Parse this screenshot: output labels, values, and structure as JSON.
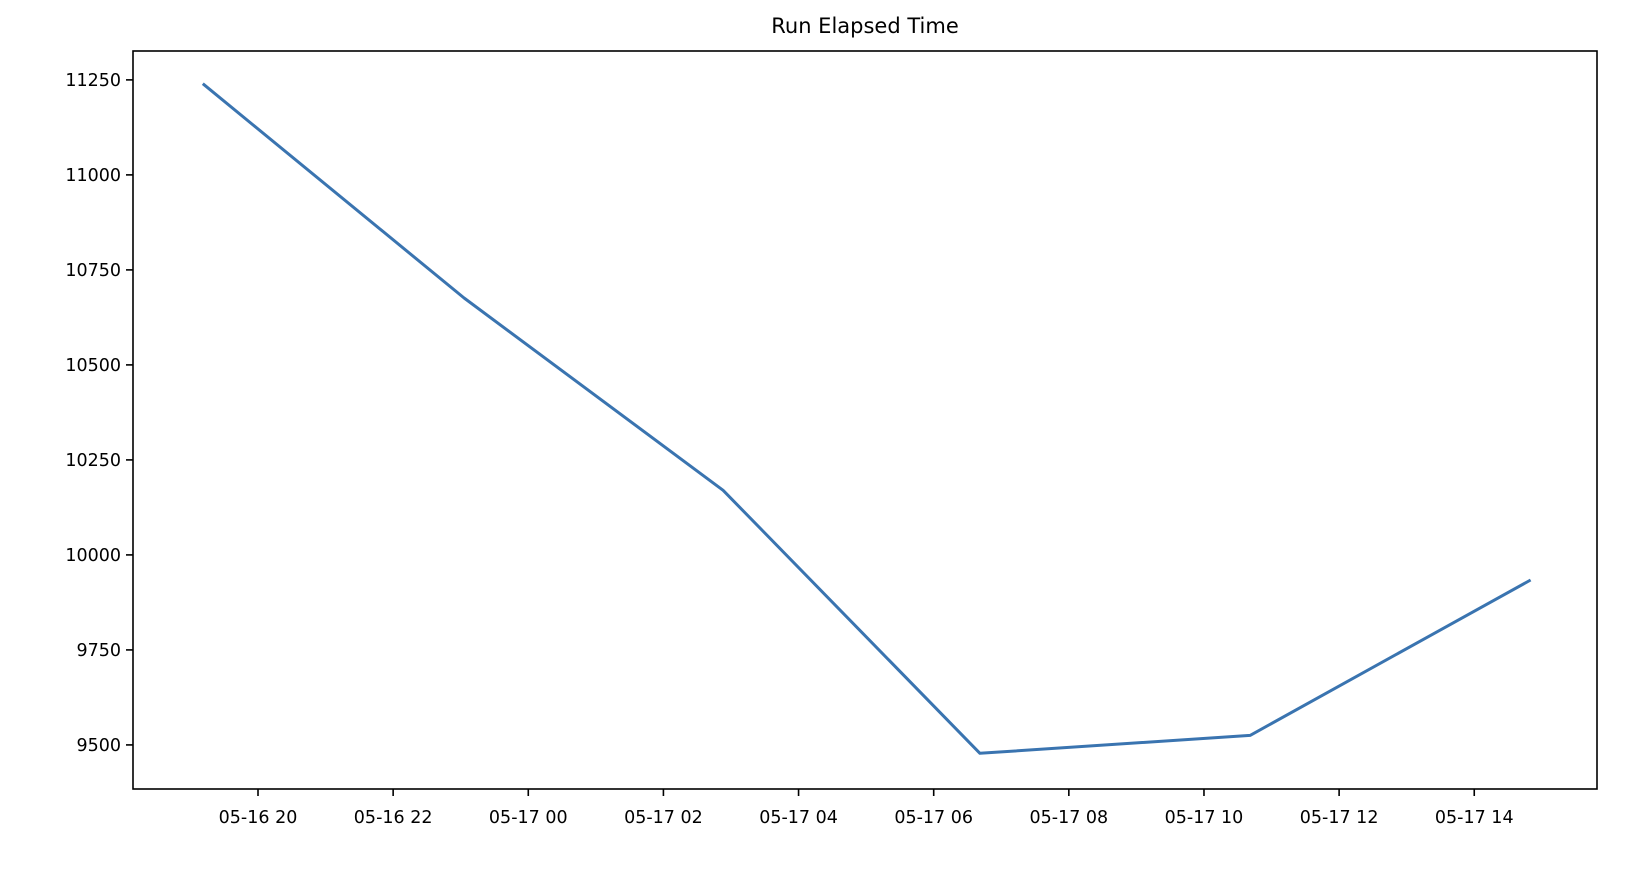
{
  "chart_data": {
    "type": "line",
    "title": "Run Elapsed Time",
    "xlabel": "",
    "ylabel": "",
    "x": [
      "2024-05-16T19:11",
      "2024-05-16T23:03",
      "2024-05-17T02:53",
      "2024-05-17T06:41",
      "2024-05-17T10:41",
      "2024-05-17T14:50"
    ],
    "series": [
      {
        "values": [
          11240,
          10676,
          10170,
          9478,
          9525,
          9934
        ],
        "color": "#3a74b0"
      }
    ],
    "xlim": [
      "2024-05-16T18:09",
      "2024-05-17T15:49"
    ],
    "ylim": [
      9384,
      11326
    ],
    "xticks": [
      {
        "value": "2024-05-16T20:00",
        "label": "05-16 20"
      },
      {
        "value": "2024-05-16T22:00",
        "label": "05-16 22"
      },
      {
        "value": "2024-05-17T00:00",
        "label": "05-17 00"
      },
      {
        "value": "2024-05-17T02:00",
        "label": "05-17 02"
      },
      {
        "value": "2024-05-17T04:00",
        "label": "05-17 04"
      },
      {
        "value": "2024-05-17T06:00",
        "label": "05-17 06"
      },
      {
        "value": "2024-05-17T08:00",
        "label": "05-17 08"
      },
      {
        "value": "2024-05-17T10:00",
        "label": "05-17 10"
      },
      {
        "value": "2024-05-17T12:00",
        "label": "05-17 12"
      },
      {
        "value": "2024-05-17T14:00",
        "label": "05-17 14"
      }
    ],
    "yticks": [
      9500,
      9750,
      10000,
      10250,
      10500,
      10750,
      11000,
      11250
    ],
    "grid": false,
    "legend": "none"
  }
}
